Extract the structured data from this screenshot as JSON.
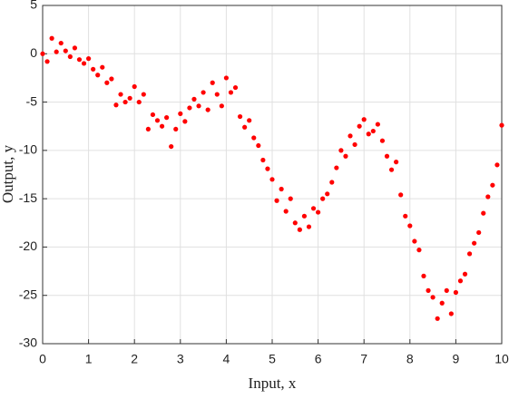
{
  "chart_data": {
    "type": "scatter",
    "xlabel": "Input, x",
    "ylabel": "Output, y",
    "x": [
      0,
      0.1,
      0.2,
      0.3,
      0.4,
      0.5,
      0.6,
      0.7,
      0.8,
      0.9,
      1,
      1.1,
      1.2,
      1.3,
      1.4,
      1.5,
      1.6,
      1.7,
      1.8,
      1.9,
      2,
      2.1,
      2.2,
      2.3,
      2.4,
      2.5,
      2.6,
      2.7,
      2.8,
      2.9,
      3,
      3.1,
      3.2,
      3.3,
      3.4,
      3.5,
      3.6,
      3.7,
      3.8,
      3.9,
      4,
      4.1,
      4.2,
      4.3,
      4.4,
      4.5,
      4.6,
      4.7,
      4.8,
      4.9,
      5,
      5.1,
      5.2,
      5.3,
      5.4,
      5.5,
      5.6,
      5.7,
      5.8,
      5.9,
      6,
      6.1,
      6.2,
      6.3,
      6.4,
      6.5,
      6.6,
      6.7,
      6.8,
      6.9,
      7,
      7.1,
      7.2,
      7.3,
      7.4,
      7.5,
      7.6,
      7.7,
      7.8,
      7.9,
      8,
      8.1,
      8.2,
      8.3,
      8.4,
      8.5,
      8.6,
      8.7,
      8.8,
      8.9,
      9,
      9.1,
      9.2,
      9.3,
      9.4,
      9.5,
      9.6,
      9.7,
      9.8,
      9.9,
      10
    ],
    "series": [
      {
        "color": "#ff0000",
        "values": [
          0.0,
          -0.8,
          1.6,
          0.2,
          1.1,
          0.3,
          -0.3,
          0.6,
          -0.6,
          -1.0,
          -0.5,
          -1.6,
          -2.2,
          -1.4,
          -3.0,
          -2.6,
          -5.3,
          -4.2,
          -5.0,
          -4.6,
          -3.4,
          -5.0,
          -4.2,
          -7.8,
          -6.3,
          -6.9,
          -7.5,
          -6.6,
          -9.6,
          -7.8,
          -6.2,
          -7.0,
          -5.6,
          -4.7,
          -5.4,
          -4.0,
          -5.8,
          -3.0,
          -4.2,
          -5.4,
          -2.5,
          -4.0,
          -3.5,
          -6.5,
          -7.6,
          -6.9,
          -8.7,
          -9.5,
          -11.0,
          -11.9,
          -13.0,
          -15.2,
          -14.0,
          -16.3,
          -15.0,
          -17.5,
          -18.2,
          -16.8,
          -17.9,
          -16.0,
          -16.4,
          -15.0,
          -14.5,
          -13.3,
          -11.8,
          -10.0,
          -10.6,
          -8.5,
          -9.4,
          -7.5,
          -6.8,
          -8.3,
          -8.0,
          -7.3,
          -9.0,
          -10.6,
          -12.0,
          -11.2,
          -14.6,
          -16.8,
          -17.8,
          -19.4,
          -20.3,
          -23.0,
          -24.5,
          -25.2,
          -27.4,
          -25.8,
          -24.5,
          -26.9,
          -24.7,
          -23.5,
          -22.8,
          -20.7,
          -19.6,
          -18.5,
          -16.5,
          -14.8,
          -13.6,
          -11.5,
          -7.4
        ]
      }
    ],
    "xlim": [
      0,
      10
    ],
    "ylim": [
      -30,
      5
    ],
    "xticks": [
      0,
      1,
      2,
      3,
      4,
      5,
      6,
      7,
      8,
      9,
      10
    ],
    "yticks": [
      -30,
      -25,
      -20,
      -15,
      -10,
      -5,
      0,
      5
    ],
    "grid": true
  }
}
